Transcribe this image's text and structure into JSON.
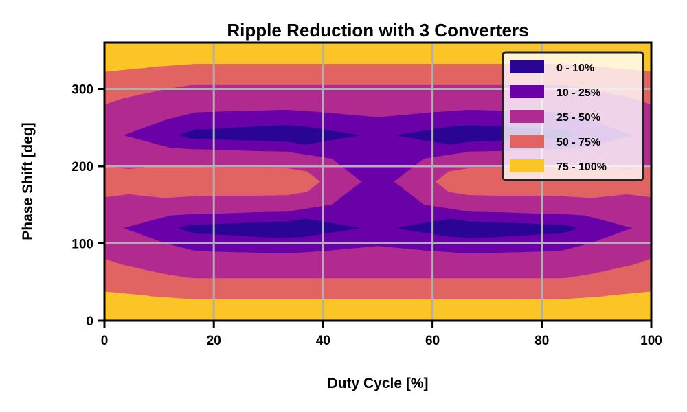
{
  "chart_data": {
    "type": "contour",
    "title": "Ripple Reduction with 3 Converters",
    "xlabel": "Duty Cycle [%]",
    "ylabel": "Phase Shift [deg]",
    "xlim": [
      0,
      100
    ],
    "ylim": [
      0,
      360
    ],
    "xticks": [
      0,
      20,
      40,
      60,
      80,
      100
    ],
    "yticks": [
      0,
      100,
      200,
      300
    ],
    "grid": true,
    "legend_position": "top-right",
    "levels": [
      {
        "label": "0 - 10%",
        "min": 0,
        "max": 10,
        "color": "#2a0593"
      },
      {
        "label": "10 - 25%",
        "min": 10,
        "max": 25,
        "color": "#6a00a8"
      },
      {
        "label": "25 - 50%",
        "min": 25,
        "max": 50,
        "color": "#b12a90"
      },
      {
        "label": "50 - 75%",
        "min": 50,
        "max": 75,
        "color": "#e16462"
      },
      {
        "label": "75 - 100%",
        "min": 75,
        "max": 100,
        "color": "#fcc527"
      }
    ],
    "duty_cycle": [
      0,
      16.67,
      33.33,
      50,
      66.67,
      83.33,
      100
    ],
    "phase_shift": [
      0,
      60,
      120,
      180,
      240,
      300,
      360
    ],
    "ripple_percent": [
      [
        100,
        100,
        100,
        100,
        100,
        100,
        100
      ],
      [
        60,
        45,
        45,
        45,
        45,
        45,
        60
      ],
      [
        30,
        5,
        0,
        12,
        0,
        5,
        30
      ],
      [
        60,
        70,
        70,
        15,
        70,
        70,
        60
      ],
      [
        30,
        5,
        0,
        12,
        0,
        5,
        30
      ],
      [
        60,
        45,
        45,
        45,
        45,
        45,
        60
      ],
      [
        100,
        100,
        100,
        100,
        100,
        100,
        100
      ]
    ]
  }
}
